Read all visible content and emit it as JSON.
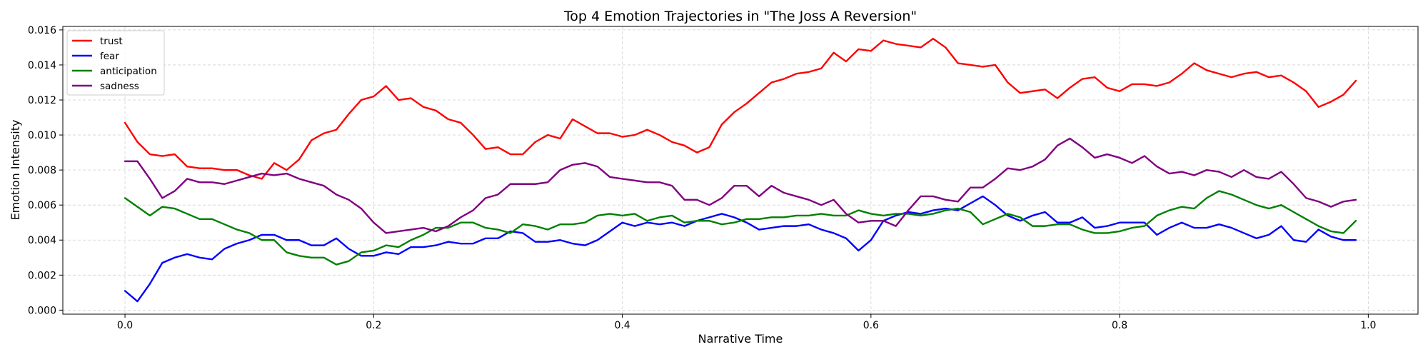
{
  "chart_data": {
    "type": "line",
    "title": "Top 4 Emotion Trajectories in \"The Joss A Reversion\"",
    "xlabel": "Narrative Time",
    "ylabel": "Emotion Intensity",
    "xlim": [
      -0.05,
      1.04
    ],
    "ylim": [
      -0.00023,
      0.0162
    ],
    "xticks": [
      0.0,
      0.2,
      0.4,
      0.6,
      0.8,
      1.0
    ],
    "xtick_labels": [
      "0.0",
      "0.2",
      "0.4",
      "0.6",
      "0.8",
      "1.0"
    ],
    "yticks": [
      0.0,
      0.002,
      0.004,
      0.006,
      0.008,
      0.01,
      0.012,
      0.014,
      0.016
    ],
    "ytick_labels": [
      "0.000",
      "0.002",
      "0.004",
      "0.006",
      "0.008",
      "0.010",
      "0.012",
      "0.014",
      "0.016"
    ],
    "grid": true,
    "legend_position": "top-left",
    "x": [
      0.0,
      0.01,
      0.02,
      0.03,
      0.04,
      0.05,
      0.06,
      0.07,
      0.08,
      0.09,
      0.1,
      0.11,
      0.12,
      0.13,
      0.14,
      0.15,
      0.16,
      0.17,
      0.18,
      0.19,
      0.2,
      0.21,
      0.22,
      0.23,
      0.24,
      0.25,
      0.26,
      0.27,
      0.28,
      0.29,
      0.3,
      0.31,
      0.32,
      0.33,
      0.34,
      0.35,
      0.36,
      0.37,
      0.38,
      0.39,
      0.4,
      0.41,
      0.42,
      0.43,
      0.44,
      0.45,
      0.46,
      0.47,
      0.48,
      0.49,
      0.5,
      0.51,
      0.52,
      0.53,
      0.54,
      0.55,
      0.56,
      0.57,
      0.58,
      0.59,
      0.6,
      0.61,
      0.62,
      0.63,
      0.64,
      0.65,
      0.66,
      0.67,
      0.68,
      0.69,
      0.7,
      0.71,
      0.72,
      0.73,
      0.74,
      0.75,
      0.76,
      0.77,
      0.78,
      0.79,
      0.8,
      0.81,
      0.82,
      0.83,
      0.84,
      0.85,
      0.86,
      0.87,
      0.88,
      0.89,
      0.9,
      0.91,
      0.92,
      0.93,
      0.94,
      0.95,
      0.96,
      0.97,
      0.98,
      0.99
    ],
    "series": [
      {
        "name": "trust",
        "color": "#ff0000",
        "values": [
          0.0107,
          0.0096,
          0.0089,
          0.0088,
          0.0089,
          0.0082,
          0.0081,
          0.0081,
          0.008,
          0.008,
          0.0077,
          0.0075,
          0.0084,
          0.008,
          0.0086,
          0.0097,
          0.0101,
          0.0103,
          0.0112,
          0.012,
          0.0122,
          0.0128,
          0.012,
          0.0121,
          0.0116,
          0.0114,
          0.0109,
          0.0107,
          0.01,
          0.0092,
          0.0093,
          0.0089,
          0.0089,
          0.0096,
          0.01,
          0.0098,
          0.0109,
          0.0105,
          0.0101,
          0.0101,
          0.0099,
          0.01,
          0.0103,
          0.01,
          0.0096,
          0.0094,
          0.009,
          0.0093,
          0.0106,
          0.0113,
          0.0118,
          0.0124,
          0.013,
          0.0132,
          0.0135,
          0.0136,
          0.0138,
          0.0147,
          0.0142,
          0.0149,
          0.0148,
          0.0154,
          0.0152,
          0.0151,
          0.015,
          0.0155,
          0.015,
          0.0141,
          0.014,
          0.0139,
          0.014,
          0.013,
          0.0124,
          0.0125,
          0.0126,
          0.0121,
          0.0127,
          0.0132,
          0.0133,
          0.0127,
          0.0125,
          0.0129,
          0.0129,
          0.0128,
          0.013,
          0.0135,
          0.0141,
          0.0137,
          0.0135,
          0.0133,
          0.0135,
          0.0136,
          0.0133,
          0.0134,
          0.013,
          0.0125,
          0.0116,
          0.0119,
          0.0123,
          0.0131
        ]
      },
      {
        "name": "fear",
        "color": "#0000ff",
        "values": [
          0.0011,
          0.0005,
          0.0015,
          0.0027,
          0.003,
          0.0032,
          0.003,
          0.0029,
          0.0035,
          0.0038,
          0.004,
          0.0043,
          0.0043,
          0.004,
          0.004,
          0.0037,
          0.0037,
          0.0041,
          0.0035,
          0.0031,
          0.0031,
          0.0033,
          0.0032,
          0.0036,
          0.0036,
          0.0037,
          0.0039,
          0.0038,
          0.0038,
          0.0041,
          0.0041,
          0.0045,
          0.0044,
          0.0039,
          0.0039,
          0.004,
          0.0038,
          0.0037,
          0.004,
          0.0045,
          0.005,
          0.0048,
          0.005,
          0.0049,
          0.005,
          0.0048,
          0.0051,
          0.0053,
          0.0055,
          0.0053,
          0.005,
          0.0046,
          0.0047,
          0.0048,
          0.0048,
          0.0049,
          0.0046,
          0.0044,
          0.0041,
          0.0034,
          0.004,
          0.0051,
          0.0054,
          0.0056,
          0.0055,
          0.0057,
          0.0058,
          0.0057,
          0.0061,
          0.0065,
          0.006,
          0.0054,
          0.0051,
          0.0054,
          0.0056,
          0.005,
          0.005,
          0.0053,
          0.0047,
          0.0048,
          0.005,
          0.005,
          0.005,
          0.0043,
          0.0047,
          0.005,
          0.0047,
          0.0047,
          0.0049,
          0.0047,
          0.0044,
          0.0041,
          0.0043,
          0.0048,
          0.004,
          0.0039,
          0.0046,
          0.0042,
          0.004,
          0.004
        ]
      },
      {
        "name": "anticipation",
        "color": "#008000",
        "values": [
          0.0064,
          0.0059,
          0.0054,
          0.0059,
          0.0058,
          0.0055,
          0.0052,
          0.0052,
          0.0049,
          0.0046,
          0.0044,
          0.004,
          0.004,
          0.0033,
          0.0031,
          0.003,
          0.003,
          0.0026,
          0.0028,
          0.0033,
          0.0034,
          0.0037,
          0.0036,
          0.004,
          0.0043,
          0.0047,
          0.0047,
          0.005,
          0.005,
          0.0047,
          0.0046,
          0.0044,
          0.0049,
          0.0048,
          0.0046,
          0.0049,
          0.0049,
          0.005,
          0.0054,
          0.0055,
          0.0054,
          0.0055,
          0.0051,
          0.0053,
          0.0054,
          0.005,
          0.0051,
          0.0051,
          0.0049,
          0.005,
          0.0052,
          0.0052,
          0.0053,
          0.0053,
          0.0054,
          0.0054,
          0.0055,
          0.0054,
          0.0054,
          0.0057,
          0.0055,
          0.0054,
          0.0055,
          0.0055,
          0.0054,
          0.0055,
          0.0057,
          0.0058,
          0.0056,
          0.0049,
          0.0052,
          0.0055,
          0.0053,
          0.0048,
          0.0048,
          0.0049,
          0.0049,
          0.0046,
          0.0044,
          0.0044,
          0.0045,
          0.0047,
          0.0048,
          0.0054,
          0.0057,
          0.0059,
          0.0058,
          0.0064,
          0.0068,
          0.0066,
          0.0063,
          0.006,
          0.0058,
          0.006,
          0.0056,
          0.0052,
          0.0048,
          0.0045,
          0.0044,
          0.0051
        ]
      },
      {
        "name": "sadness",
        "color": "#800080",
        "values": [
          0.0085,
          0.0085,
          0.0075,
          0.0064,
          0.0068,
          0.0075,
          0.0073,
          0.0073,
          0.0072,
          0.0074,
          0.0076,
          0.0078,
          0.0077,
          0.0078,
          0.0075,
          0.0073,
          0.0071,
          0.0066,
          0.0063,
          0.0058,
          0.005,
          0.0044,
          0.0045,
          0.0046,
          0.0047,
          0.0045,
          0.0048,
          0.0053,
          0.0057,
          0.0064,
          0.0066,
          0.0072,
          0.0072,
          0.0072,
          0.0073,
          0.008,
          0.0083,
          0.0084,
          0.0082,
          0.0076,
          0.0075,
          0.0074,
          0.0073,
          0.0073,
          0.0071,
          0.0063,
          0.0063,
          0.006,
          0.0064,
          0.0071,
          0.0071,
          0.0065,
          0.0071,
          0.0067,
          0.0065,
          0.0063,
          0.006,
          0.0063,
          0.0055,
          0.005,
          0.0051,
          0.0051,
          0.0048,
          0.0057,
          0.0065,
          0.0065,
          0.0063,
          0.0062,
          0.007,
          0.007,
          0.0075,
          0.0081,
          0.008,
          0.0082,
          0.0086,
          0.0094,
          0.0098,
          0.0093,
          0.0087,
          0.0089,
          0.0087,
          0.0084,
          0.0088,
          0.0082,
          0.0078,
          0.0079,
          0.0077,
          0.008,
          0.0079,
          0.0076,
          0.008,
          0.0076,
          0.0075,
          0.0079,
          0.0072,
          0.0064,
          0.0062,
          0.0059,
          0.0062,
          0.0063
        ]
      }
    ]
  }
}
